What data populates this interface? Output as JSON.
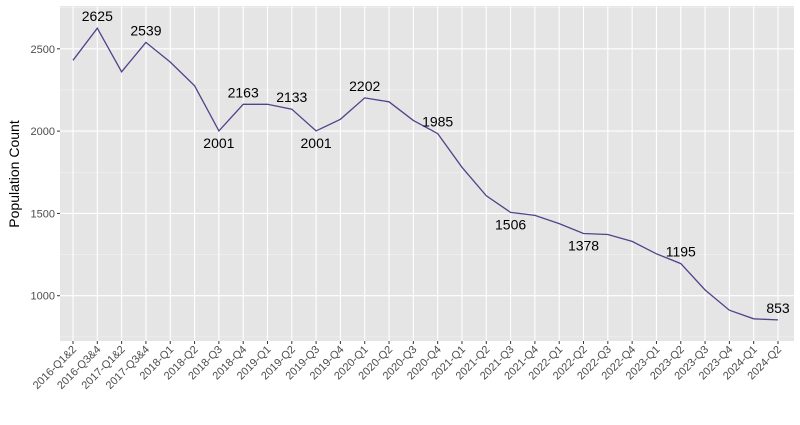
{
  "chart_data": {
    "type": "line",
    "title": "",
    "xlabel": "",
    "ylabel": "Population Count",
    "ylim": [
      725,
      2760
    ],
    "y_ticks": [
      1000,
      1500,
      2000,
      2500
    ],
    "grid": true,
    "colors": {
      "line": "#55418a",
      "panel": "#e5e5e5",
      "grid_major": "#ffffff",
      "grid_minor": "#f2f2f2"
    },
    "categories": [
      "2016-Q1&2",
      "2016-Q3&4",
      "2017-Q1&2",
      "2017-Q3&4",
      "2018-Q1",
      "2018-Q2",
      "2018-Q3",
      "2018-Q4",
      "2019-Q1",
      "2019-Q2",
      "2019-Q3",
      "2019-Q4",
      "2020-Q1",
      "2020-Q2",
      "2020-Q3",
      "2020-Q4",
      "2021-Q1",
      "2021-Q2",
      "2021-Q3",
      "2021-Q4",
      "2022-Q1",
      "2022-Q2",
      "2022-Q3",
      "2022-Q4",
      "2023-Q1",
      "2023-Q2",
      "2023-Q3",
      "2023-Q4",
      "2024-Q1",
      "2024-Q2"
    ],
    "values": [
      2430,
      2625,
      2360,
      2539,
      2420,
      2275,
      2001,
      2163,
      2163,
      2133,
      2001,
      2072,
      2202,
      2178,
      2065,
      1985,
      1780,
      1607,
      1506,
      1488,
      1438,
      1378,
      1372,
      1330,
      1255,
      1195,
      1035,
      912,
      860,
      853
    ],
    "annotations": [
      {
        "index": 1,
        "label": "2625",
        "position": "above"
      },
      {
        "index": 3,
        "label": "2539",
        "position": "above"
      },
      {
        "index": 6,
        "label": "2001",
        "position": "below"
      },
      {
        "index": 7,
        "label": "2163",
        "position": "above"
      },
      {
        "index": 9,
        "label": "2133",
        "position": "above"
      },
      {
        "index": 10,
        "label": "2001",
        "position": "below"
      },
      {
        "index": 12,
        "label": "2202",
        "position": "above"
      },
      {
        "index": 15,
        "label": "1985",
        "position": "above"
      },
      {
        "index": 18,
        "label": "1506",
        "position": "below"
      },
      {
        "index": 21,
        "label": "1378",
        "position": "below"
      },
      {
        "index": 25,
        "label": "1195",
        "position": "above"
      },
      {
        "index": 29,
        "label": "853",
        "position": "above"
      }
    ]
  }
}
